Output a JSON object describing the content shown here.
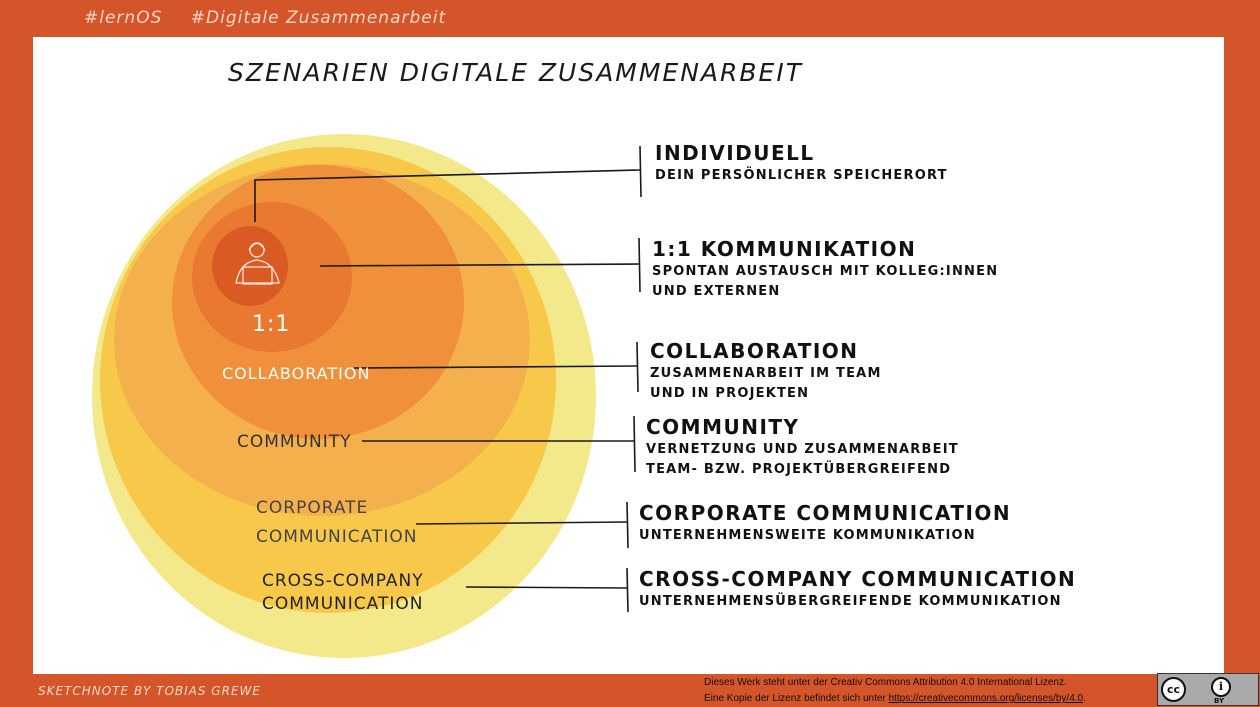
{
  "hashtags": [
    "#lernOS",
    "#Digitale Zusammenarbeit"
  ],
  "title": "Szenarien Digitale Zusammenarbeit",
  "diagram": {
    "ring_labels": {
      "one_to_one": "1:1",
      "collaboration": "Collaboration",
      "community": "Community",
      "corporate": [
        "Corporate",
        "Communication"
      ],
      "cross_company": [
        "Cross-Company",
        "Communication"
      ]
    },
    "descriptions": {
      "individuell": {
        "heading": "Individuell",
        "lines": [
          "Dein persönlicher Speicherort"
        ]
      },
      "one_to_one": {
        "heading": "1:1 Kommunikation",
        "lines": [
          "Spontan Austausch mit Kolleg:innen",
          "und Externen"
        ]
      },
      "collaboration": {
        "heading": "Collaboration",
        "lines": [
          "Zusammenarbeit im Team",
          "und in Projekten"
        ]
      },
      "community": {
        "heading": "Community",
        "lines": [
          "Vernetzung und Zusammenarbeit",
          "Team- bzw. Projektübergreifend"
        ]
      },
      "corporate": {
        "heading": "Corporate Communication",
        "lines": [
          "Unternehmensweite Kommunikation"
        ]
      },
      "cross_company": {
        "heading": "Cross-Company Communication",
        "lines": [
          "Unternehmensübergreifende Kommunikation"
        ]
      }
    },
    "colors": {
      "background": "#d5552a",
      "ring_cross_company": "#f4e98a",
      "ring_corporate": "#f7c84a",
      "ring_community": "#f5b04e",
      "ring_collaboration": "#f0903a",
      "ring_one_to_one": "#e97831",
      "ring_individual": "#d95a22"
    },
    "icons": [
      "person-with-laptop-icon"
    ]
  },
  "footer": {
    "credit": "Sketchnote by Tobias Grewe",
    "license_line1": "Dieses Werk steht unter der Creativ Commons Attribution 4.0 International Lizenz.",
    "license_line2_prefix": "Eine Kopie der Lizenz befindet sich unter ",
    "license_url": "https://creativecommons.org/licenses/by/4.0",
    "license_line2_suffix": ".",
    "badge_cc": "cc",
    "badge_by_symbol": "i",
    "badge_by": "BY"
  }
}
